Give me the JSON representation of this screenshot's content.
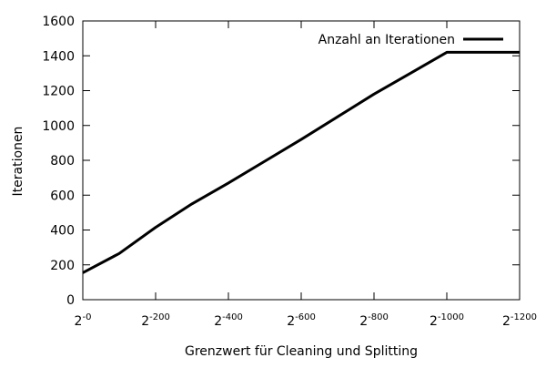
{
  "chart_data": {
    "type": "line",
    "title": "",
    "xlabel": "Grenzwert für Cleaning und Splitting",
    "ylabel": "Iterationen",
    "xlim": [
      0,
      1200
    ],
    "ylim": [
      0,
      1600
    ],
    "x_scale": "log2",
    "x_ticks": [
      {
        "base": "2",
        "exp": "-0",
        "value": 0
      },
      {
        "base": "2",
        "exp": "-200",
        "value": 200
      },
      {
        "base": "2",
        "exp": "-400",
        "value": 400
      },
      {
        "base": "2",
        "exp": "-600",
        "value": 600
      },
      {
        "base": "2",
        "exp": "-800",
        "value": 800
      },
      {
        "base": "2",
        "exp": "-1000",
        "value": 1000
      },
      {
        "base": "2",
        "exp": "-1200",
        "value": 1200
      }
    ],
    "y_ticks": [
      {
        "label": "0",
        "value": 0
      },
      {
        "label": "200",
        "value": 200
      },
      {
        "label": "400",
        "value": 400
      },
      {
        "label": "600",
        "value": 600
      },
      {
        "label": "800",
        "value": 800
      },
      {
        "label": "1000",
        "value": 1000
      },
      {
        "label": "1200",
        "value": 1200
      },
      {
        "label": "1400",
        "value": 1400
      },
      {
        "label": "1600",
        "value": 1600
      }
    ],
    "grid": false,
    "legend_position": "top-right",
    "series": [
      {
        "name": "Anzahl an Iterationen",
        "color": "#000000",
        "x": [
          0,
          100,
          200,
          300,
          400,
          500,
          600,
          700,
          800,
          900,
          1000,
          1100,
          1200
        ],
        "y": [
          155,
          265,
          415,
          550,
          670,
          795,
          920,
          1050,
          1180,
          1300,
          1420,
          1420,
          1420
        ]
      }
    ]
  }
}
